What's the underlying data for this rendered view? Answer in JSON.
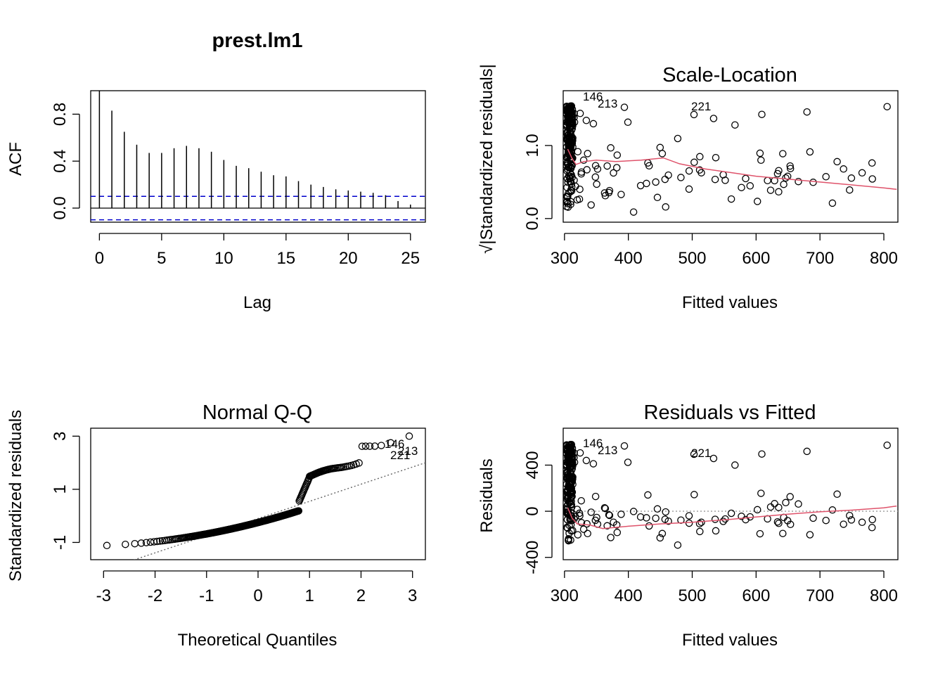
{
  "chart_data": [
    {
      "type": "bar",
      "id": "acf",
      "title": "prest.lm1",
      "xlabel": "Lag",
      "ylabel": "ACF",
      "xlim": [
        0,
        25
      ],
      "ylim": [
        -0.12,
        1.0
      ],
      "xticks": [
        "0",
        "5",
        "10",
        "15",
        "20",
        "25"
      ],
      "yticks": [
        "0.0",
        "0.4",
        "0.8"
      ],
      "confidence_band": [
        0.1,
        -0.1
      ],
      "band_color": "#0000CC",
      "lags": [
        0,
        1,
        2,
        3,
        4,
        5,
        6,
        7,
        8,
        9,
        10,
        11,
        12,
        13,
        14,
        15,
        16,
        17,
        18,
        19,
        20,
        21,
        22,
        23,
        24,
        25
      ],
      "values": [
        1.0,
        0.83,
        0.65,
        0.54,
        0.47,
        0.47,
        0.51,
        0.53,
        0.51,
        0.48,
        0.41,
        0.36,
        0.34,
        0.31,
        0.28,
        0.27,
        0.23,
        0.2,
        0.18,
        0.16,
        0.15,
        0.14,
        0.13,
        0.11,
        0.06,
        0.03
      ]
    },
    {
      "type": "scatter",
      "id": "scale-location",
      "title": "Scale-Location",
      "xlabel": "Fitted values",
      "ylabel": "√|Standardized residuals|",
      "xlim": [
        298,
        822
      ],
      "ylim": [
        -0.05,
        1.75
      ],
      "xticks": [
        "300",
        "400",
        "500",
        "600",
        "700",
        "800"
      ],
      "yticks": [
        "0.0",
        "1.0"
      ],
      "smooth_color": "#DF536B",
      "annotations": [
        "146",
        "213",
        "221"
      ],
      "smooth": [
        [
          305,
          0.95
        ],
        [
          312,
          0.82
        ],
        [
          318,
          0.74
        ],
        [
          330,
          0.78
        ],
        [
          350,
          0.8
        ],
        [
          380,
          0.78
        ],
        [
          420,
          0.8
        ],
        [
          455,
          0.83
        ],
        [
          480,
          0.75
        ],
        [
          520,
          0.68
        ],
        [
          560,
          0.63
        ],
        [
          600,
          0.58
        ],
        [
          650,
          0.54
        ],
        [
          700,
          0.5
        ],
        [
          750,
          0.46
        ],
        [
          800,
          0.42
        ],
        [
          820,
          0.4
        ]
      ]
    },
    {
      "type": "scatter",
      "id": "normal-qq",
      "title": "Normal Q-Q",
      "xlabel": "Theoretical Quantiles",
      "ylabel": "Standardized residuals",
      "xlim": [
        -3.25,
        3.25
      ],
      "ylim": [
        -1.65,
        3.3
      ],
      "xticks": [
        "-3",
        "-2",
        "-1",
        "0",
        "1",
        "2",
        "3"
      ],
      "yticks": [
        "-1",
        "1",
        "3"
      ],
      "reference_line": [
        [
          -3.25,
          -2.2
        ],
        [
          3.25,
          2.0
        ]
      ],
      "annotations": [
        "146",
        "213",
        "221"
      ]
    },
    {
      "type": "scatter",
      "id": "residuals-fitted",
      "title": "Residuals vs Fitted",
      "xlabel": "Fitted values",
      "ylabel": "Residuals",
      "xlim": [
        298,
        822
      ],
      "ylim": [
        -420,
        720
      ],
      "xticks": [
        "300",
        "400",
        "500",
        "600",
        "700",
        "800"
      ],
      "yticks": [
        "-400",
        "0",
        "400"
      ],
      "smooth_color": "#DF536B",
      "annotations": [
        "146",
        "213",
        "221"
      ],
      "smooth": [
        [
          305,
          30
        ],
        [
          312,
          -60
        ],
        [
          320,
          -110
        ],
        [
          340,
          -120
        ],
        [
          360,
          -150
        ],
        [
          400,
          -130
        ],
        [
          450,
          -110
        ],
        [
          500,
          -95
        ],
        [
          560,
          -70
        ],
        [
          600,
          -50
        ],
        [
          650,
          -25
        ],
        [
          700,
          -5
        ],
        [
          750,
          10
        ],
        [
          800,
          30
        ],
        [
          820,
          45
        ]
      ]
    }
  ]
}
